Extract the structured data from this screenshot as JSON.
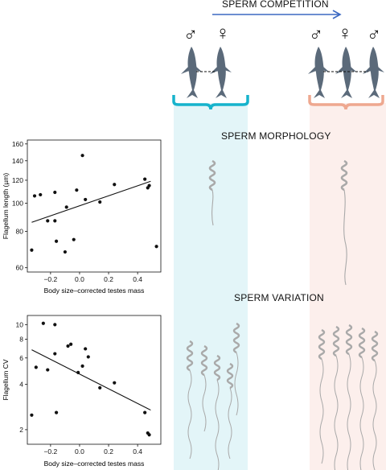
{
  "headings": {
    "competition": "SPERM COMPETITION",
    "morphology": "SPERM MORPHOLOGY",
    "variation": "SPERM VARIATION"
  },
  "symbols": {
    "male": "♂",
    "female": "♀"
  },
  "groups": {
    "low": {
      "sexes": [
        "male",
        "female"
      ],
      "color": "#16b3cc",
      "bg": "#e3f5f8"
    },
    "high": {
      "sexes": [
        "male",
        "female",
        "male"
      ],
      "color": "#eea890",
      "bg": "#fcefec"
    }
  },
  "colors": {
    "arrow": "#3b68c2",
    "fish": "#5b6a7a",
    "sperm": "#a9a9a9",
    "points": "#111111"
  },
  "chart_data": [
    {
      "type": "scatter",
      "xlabel": "Body size–corrected testes mass",
      "ylabel": "Flagellum length (µm)",
      "yscale": "log",
      "xlim": [
        -0.36,
        0.56
      ],
      "ylim": [
        58,
        165
      ],
      "xticks": [
        "−0.2",
        "0.0",
        "0.2",
        "0.4"
      ],
      "xtick_values": [
        -0.2,
        0.0,
        0.2,
        0.4
      ],
      "yticks": [
        "60",
        "80",
        "100",
        "120",
        "140",
        "160"
      ],
      "ytick_values": [
        60,
        80,
        100,
        120,
        140,
        160
      ],
      "x": [
        -0.33,
        -0.31,
        -0.27,
        -0.22,
        -0.17,
        -0.17,
        -0.16,
        -0.1,
        -0.09,
        -0.04,
        -0.02,
        0.02,
        0.04,
        0.14,
        0.24,
        0.45,
        0.47,
        0.48,
        0.53
      ],
      "y": [
        69,
        106,
        107,
        87,
        109,
        87,
        74,
        68,
        97,
        75,
        111,
        146,
        103,
        101,
        116,
        121,
        113,
        115,
        71
      ],
      "fit": {
        "x": [
          -0.33,
          0.49
        ],
        "y": [
          86,
          119
        ]
      }
    },
    {
      "type": "scatter",
      "xlabel": "Body size–corrected testes mass",
      "ylabel": "Flagellum CV",
      "yscale": "log",
      "xlim": [
        -0.36,
        0.56
      ],
      "ylim": [
        1.6,
        11.5
      ],
      "xticks": [
        "−0.2",
        "0.0",
        "0.2",
        "0.4"
      ],
      "xtick_values": [
        -0.2,
        0.0,
        0.2,
        0.4
      ],
      "yticks": [
        "2",
        "4",
        "6",
        "8",
        "10"
      ],
      "ytick_values": [
        2,
        4,
        6,
        8,
        10
      ],
      "x": [
        -0.33,
        -0.3,
        -0.25,
        -0.22,
        -0.17,
        -0.17,
        -0.16,
        -0.08,
        -0.06,
        -0.01,
        0.02,
        0.04,
        0.06,
        0.14,
        0.24,
        0.45,
        0.47,
        0.48
      ],
      "y": [
        2.5,
        5.2,
        10.2,
        5.0,
        10.0,
        6.4,
        2.6,
        7.2,
        7.4,
        4.8,
        5.3,
        6.9,
        6.1,
        3.8,
        4.1,
        2.6,
        1.9,
        1.85
      ],
      "fit": {
        "x": [
          -0.33,
          0.49
        ],
        "y": [
          6.8,
          2.7
        ]
      }
    }
  ]
}
